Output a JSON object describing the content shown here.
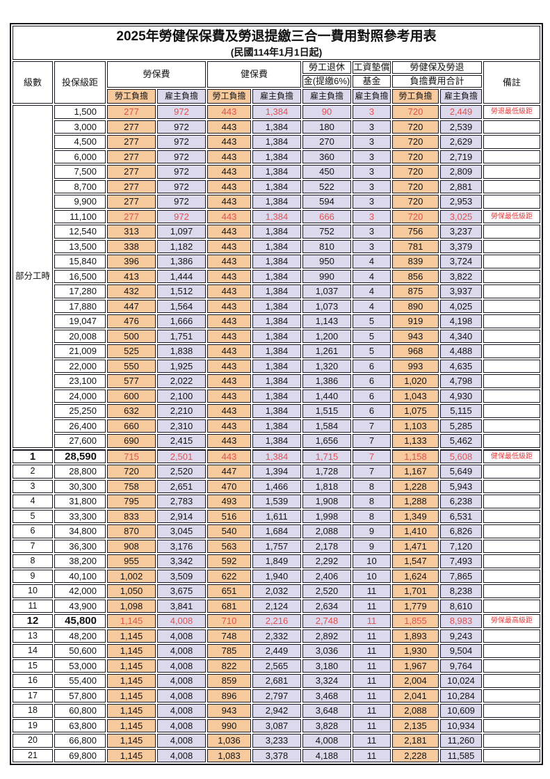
{
  "doc": {
    "title": "2025年勞健保保費及勞退提繳三合一費用對照參考用表",
    "subtitle": "(民國114年1月1日起)"
  },
  "colors": {
    "employee_bg": "#F7CA9E",
    "employer_bg": "#DCD9ED",
    "highlight_red": "#E05252",
    "note_red": "#E23D3D",
    "border": "#17171F"
  },
  "header": {
    "level": "級數",
    "bracket": "投保級距",
    "labor_ins": "勞保費",
    "health_ins": "健保費",
    "pension_line1": "勞工退休",
    "pension_line2": "金(提繳6%)",
    "wage_fund_line1": "工資墊償",
    "wage_fund_line2": "基金",
    "total_line1": "勞健保及勞退",
    "total_line2": "負擔費用合計",
    "note": "備註",
    "employee": "勞工負擔",
    "employer": "雇主負擔"
  },
  "part_time_label": "部分工時",
  "table": {
    "part_time_rowspan": 23,
    "columns": [
      "級數",
      "投保級距",
      "勞保費-勞工負擔",
      "勞保費-雇主負擔",
      "健保費-勞工負擔",
      "健保費-雇主負擔",
      "勞工退休金(提繳6%)-雇主負擔",
      "工資墊償基金-雇主負擔",
      "合計-勞工負擔",
      "合計-雇主負擔",
      "備註"
    ],
    "rows": [
      {
        "lv": "",
        "br": "1,500",
        "v": [
          "277",
          "972",
          "443",
          "1,384",
          "90",
          "3",
          "720",
          "2,449"
        ],
        "note": "勞退最低級距",
        "red": true
      },
      {
        "lv": "",
        "br": "3,000",
        "v": [
          "277",
          "972",
          "443",
          "1,384",
          "180",
          "3",
          "720",
          "2,539"
        ]
      },
      {
        "lv": "",
        "br": "4,500",
        "v": [
          "277",
          "972",
          "443",
          "1,384",
          "270",
          "3",
          "720",
          "2,629"
        ]
      },
      {
        "lv": "",
        "br": "6,000",
        "v": [
          "277",
          "972",
          "443",
          "1,384",
          "360",
          "3",
          "720",
          "2,719"
        ]
      },
      {
        "lv": "",
        "br": "7,500",
        "v": [
          "277",
          "972",
          "443",
          "1,384",
          "450",
          "3",
          "720",
          "2,809"
        ]
      },
      {
        "lv": "",
        "br": "8,700",
        "v": [
          "277",
          "972",
          "443",
          "1,384",
          "522",
          "3",
          "720",
          "2,881"
        ]
      },
      {
        "lv": "",
        "br": "9,900",
        "v": [
          "277",
          "972",
          "443",
          "1,384",
          "594",
          "3",
          "720",
          "2,953"
        ]
      },
      {
        "lv": "",
        "br": "11,100",
        "v": [
          "277",
          "972",
          "443",
          "1,384",
          "666",
          "3",
          "720",
          "3,025"
        ],
        "note": "勞保最低級距",
        "red": true
      },
      {
        "lv": "",
        "br": "12,540",
        "v": [
          "313",
          "1,097",
          "443",
          "1,384",
          "752",
          "3",
          "756",
          "3,237"
        ]
      },
      {
        "lv": "",
        "br": "13,500",
        "v": [
          "338",
          "1,182",
          "443",
          "1,384",
          "810",
          "3",
          "781",
          "3,379"
        ]
      },
      {
        "lv": "",
        "br": "15,840",
        "v": [
          "396",
          "1,386",
          "443",
          "1,384",
          "950",
          "4",
          "839",
          "3,724"
        ]
      },
      {
        "lv": "",
        "br": "16,500",
        "v": [
          "413",
          "1,444",
          "443",
          "1,384",
          "990",
          "4",
          "856",
          "3,822"
        ]
      },
      {
        "lv": "",
        "br": "17,280",
        "v": [
          "432",
          "1,512",
          "443",
          "1,384",
          "1,037",
          "4",
          "875",
          "3,937"
        ]
      },
      {
        "lv": "",
        "br": "17,880",
        "v": [
          "447",
          "1,564",
          "443",
          "1,384",
          "1,073",
          "4",
          "890",
          "4,025"
        ]
      },
      {
        "lv": "",
        "br": "19,047",
        "v": [
          "476",
          "1,666",
          "443",
          "1,384",
          "1,143",
          "5",
          "919",
          "4,198"
        ]
      },
      {
        "lv": "",
        "br": "20,008",
        "v": [
          "500",
          "1,751",
          "443",
          "1,384",
          "1,200",
          "5",
          "943",
          "4,340"
        ]
      },
      {
        "lv": "",
        "br": "21,009",
        "v": [
          "525",
          "1,838",
          "443",
          "1,384",
          "1,261",
          "5",
          "968",
          "4,488"
        ]
      },
      {
        "lv": "",
        "br": "22,000",
        "v": [
          "550",
          "1,925",
          "443",
          "1,384",
          "1,320",
          "6",
          "993",
          "4,635"
        ]
      },
      {
        "lv": "",
        "br": "23,100",
        "v": [
          "577",
          "2,022",
          "443",
          "1,384",
          "1,386",
          "6",
          "1,020",
          "4,798"
        ]
      },
      {
        "lv": "",
        "br": "24,000",
        "v": [
          "600",
          "2,100",
          "443",
          "1,384",
          "1,440",
          "6",
          "1,043",
          "4,930"
        ]
      },
      {
        "lv": "",
        "br": "25,250",
        "v": [
          "632",
          "2,210",
          "443",
          "1,384",
          "1,515",
          "6",
          "1,075",
          "5,115"
        ]
      },
      {
        "lv": "",
        "br": "26,400",
        "v": [
          "660",
          "2,310",
          "443",
          "1,384",
          "1,584",
          "7",
          "1,103",
          "5,285"
        ]
      },
      {
        "lv": "",
        "br": "27,600",
        "v": [
          "690",
          "2,415",
          "443",
          "1,384",
          "1,656",
          "7",
          "1,133",
          "5,462"
        ]
      },
      {
        "lv": "1",
        "br": "28,590",
        "v": [
          "715",
          "2,501",
          "443",
          "1,384",
          "1,715",
          "7",
          "1,158",
          "5,608"
        ],
        "note": "健保最低級距",
        "red": true,
        "big": true
      },
      {
        "lv": "2",
        "br": "28,800",
        "v": [
          "720",
          "2,520",
          "447",
          "1,394",
          "1,728",
          "7",
          "1,167",
          "5,649"
        ]
      },
      {
        "lv": "3",
        "br": "30,300",
        "v": [
          "758",
          "2,651",
          "470",
          "1,466",
          "1,818",
          "8",
          "1,228",
          "5,943"
        ]
      },
      {
        "lv": "4",
        "br": "31,800",
        "v": [
          "795",
          "2,783",
          "493",
          "1,539",
          "1,908",
          "8",
          "1,288",
          "6,238"
        ]
      },
      {
        "lv": "5",
        "br": "33,300",
        "v": [
          "833",
          "2,914",
          "516",
          "1,611",
          "1,998",
          "8",
          "1,349",
          "6,531"
        ]
      },
      {
        "lv": "6",
        "br": "34,800",
        "v": [
          "870",
          "3,045",
          "540",
          "1,684",
          "2,088",
          "9",
          "1,410",
          "6,826"
        ]
      },
      {
        "lv": "7",
        "br": "36,300",
        "v": [
          "908",
          "3,176",
          "563",
          "1,757",
          "2,178",
          "9",
          "1,471",
          "7,120"
        ]
      },
      {
        "lv": "8",
        "br": "38,200",
        "v": [
          "955",
          "3,342",
          "592",
          "1,849",
          "2,292",
          "10",
          "1,547",
          "7,493"
        ]
      },
      {
        "lv": "9",
        "br": "40,100",
        "v": [
          "1,002",
          "3,509",
          "622",
          "1,940",
          "2,406",
          "10",
          "1,624",
          "7,865"
        ]
      },
      {
        "lv": "10",
        "br": "42,000",
        "v": [
          "1,050",
          "3,675",
          "651",
          "2,032",
          "2,520",
          "11",
          "1,701",
          "8,238"
        ]
      },
      {
        "lv": "11",
        "br": "43,900",
        "v": [
          "1,098",
          "3,841",
          "681",
          "2,124",
          "2,634",
          "11",
          "1,779",
          "8,610"
        ]
      },
      {
        "lv": "12",
        "br": "45,800",
        "v": [
          "1,145",
          "4,008",
          "710",
          "2,216",
          "2,748",
          "11",
          "1,855",
          "8,983"
        ],
        "note": "勞保最高級距",
        "red": true,
        "big": true
      },
      {
        "lv": "13",
        "br": "48,200",
        "v": [
          "1,145",
          "4,008",
          "748",
          "2,332",
          "2,892",
          "11",
          "1,893",
          "9,243"
        ]
      },
      {
        "lv": "14",
        "br": "50,600",
        "v": [
          "1,145",
          "4,008",
          "785",
          "2,449",
          "3,036",
          "11",
          "1,930",
          "9,504"
        ]
      },
      {
        "lv": "15",
        "br": "53,000",
        "v": [
          "1,145",
          "4,008",
          "822",
          "2,565",
          "3,180",
          "11",
          "1,967",
          "9,764"
        ]
      },
      {
        "lv": "16",
        "br": "55,400",
        "v": [
          "1,145",
          "4,008",
          "859",
          "2,681",
          "3,324",
          "11",
          "2,004",
          "10,024"
        ]
      },
      {
        "lv": "17",
        "br": "57,800",
        "v": [
          "1,145",
          "4,008",
          "896",
          "2,797",
          "3,468",
          "11",
          "2,041",
          "10,284"
        ]
      },
      {
        "lv": "18",
        "br": "60,800",
        "v": [
          "1,145",
          "4,008",
          "943",
          "2,942",
          "3,648",
          "11",
          "2,088",
          "10,609"
        ]
      },
      {
        "lv": "19",
        "br": "63,800",
        "v": [
          "1,145",
          "4,008",
          "990",
          "3,087",
          "3,828",
          "11",
          "2,135",
          "10,934"
        ]
      },
      {
        "lv": "20",
        "br": "66,800",
        "v": [
          "1,145",
          "4,008",
          "1,036",
          "3,233",
          "4,008",
          "11",
          "2,181",
          "11,260"
        ]
      },
      {
        "lv": "21",
        "br": "69,800",
        "v": [
          "1,145",
          "4,008",
          "1,083",
          "3,378",
          "4,188",
          "11",
          "2,228",
          "11,585"
        ]
      }
    ]
  }
}
